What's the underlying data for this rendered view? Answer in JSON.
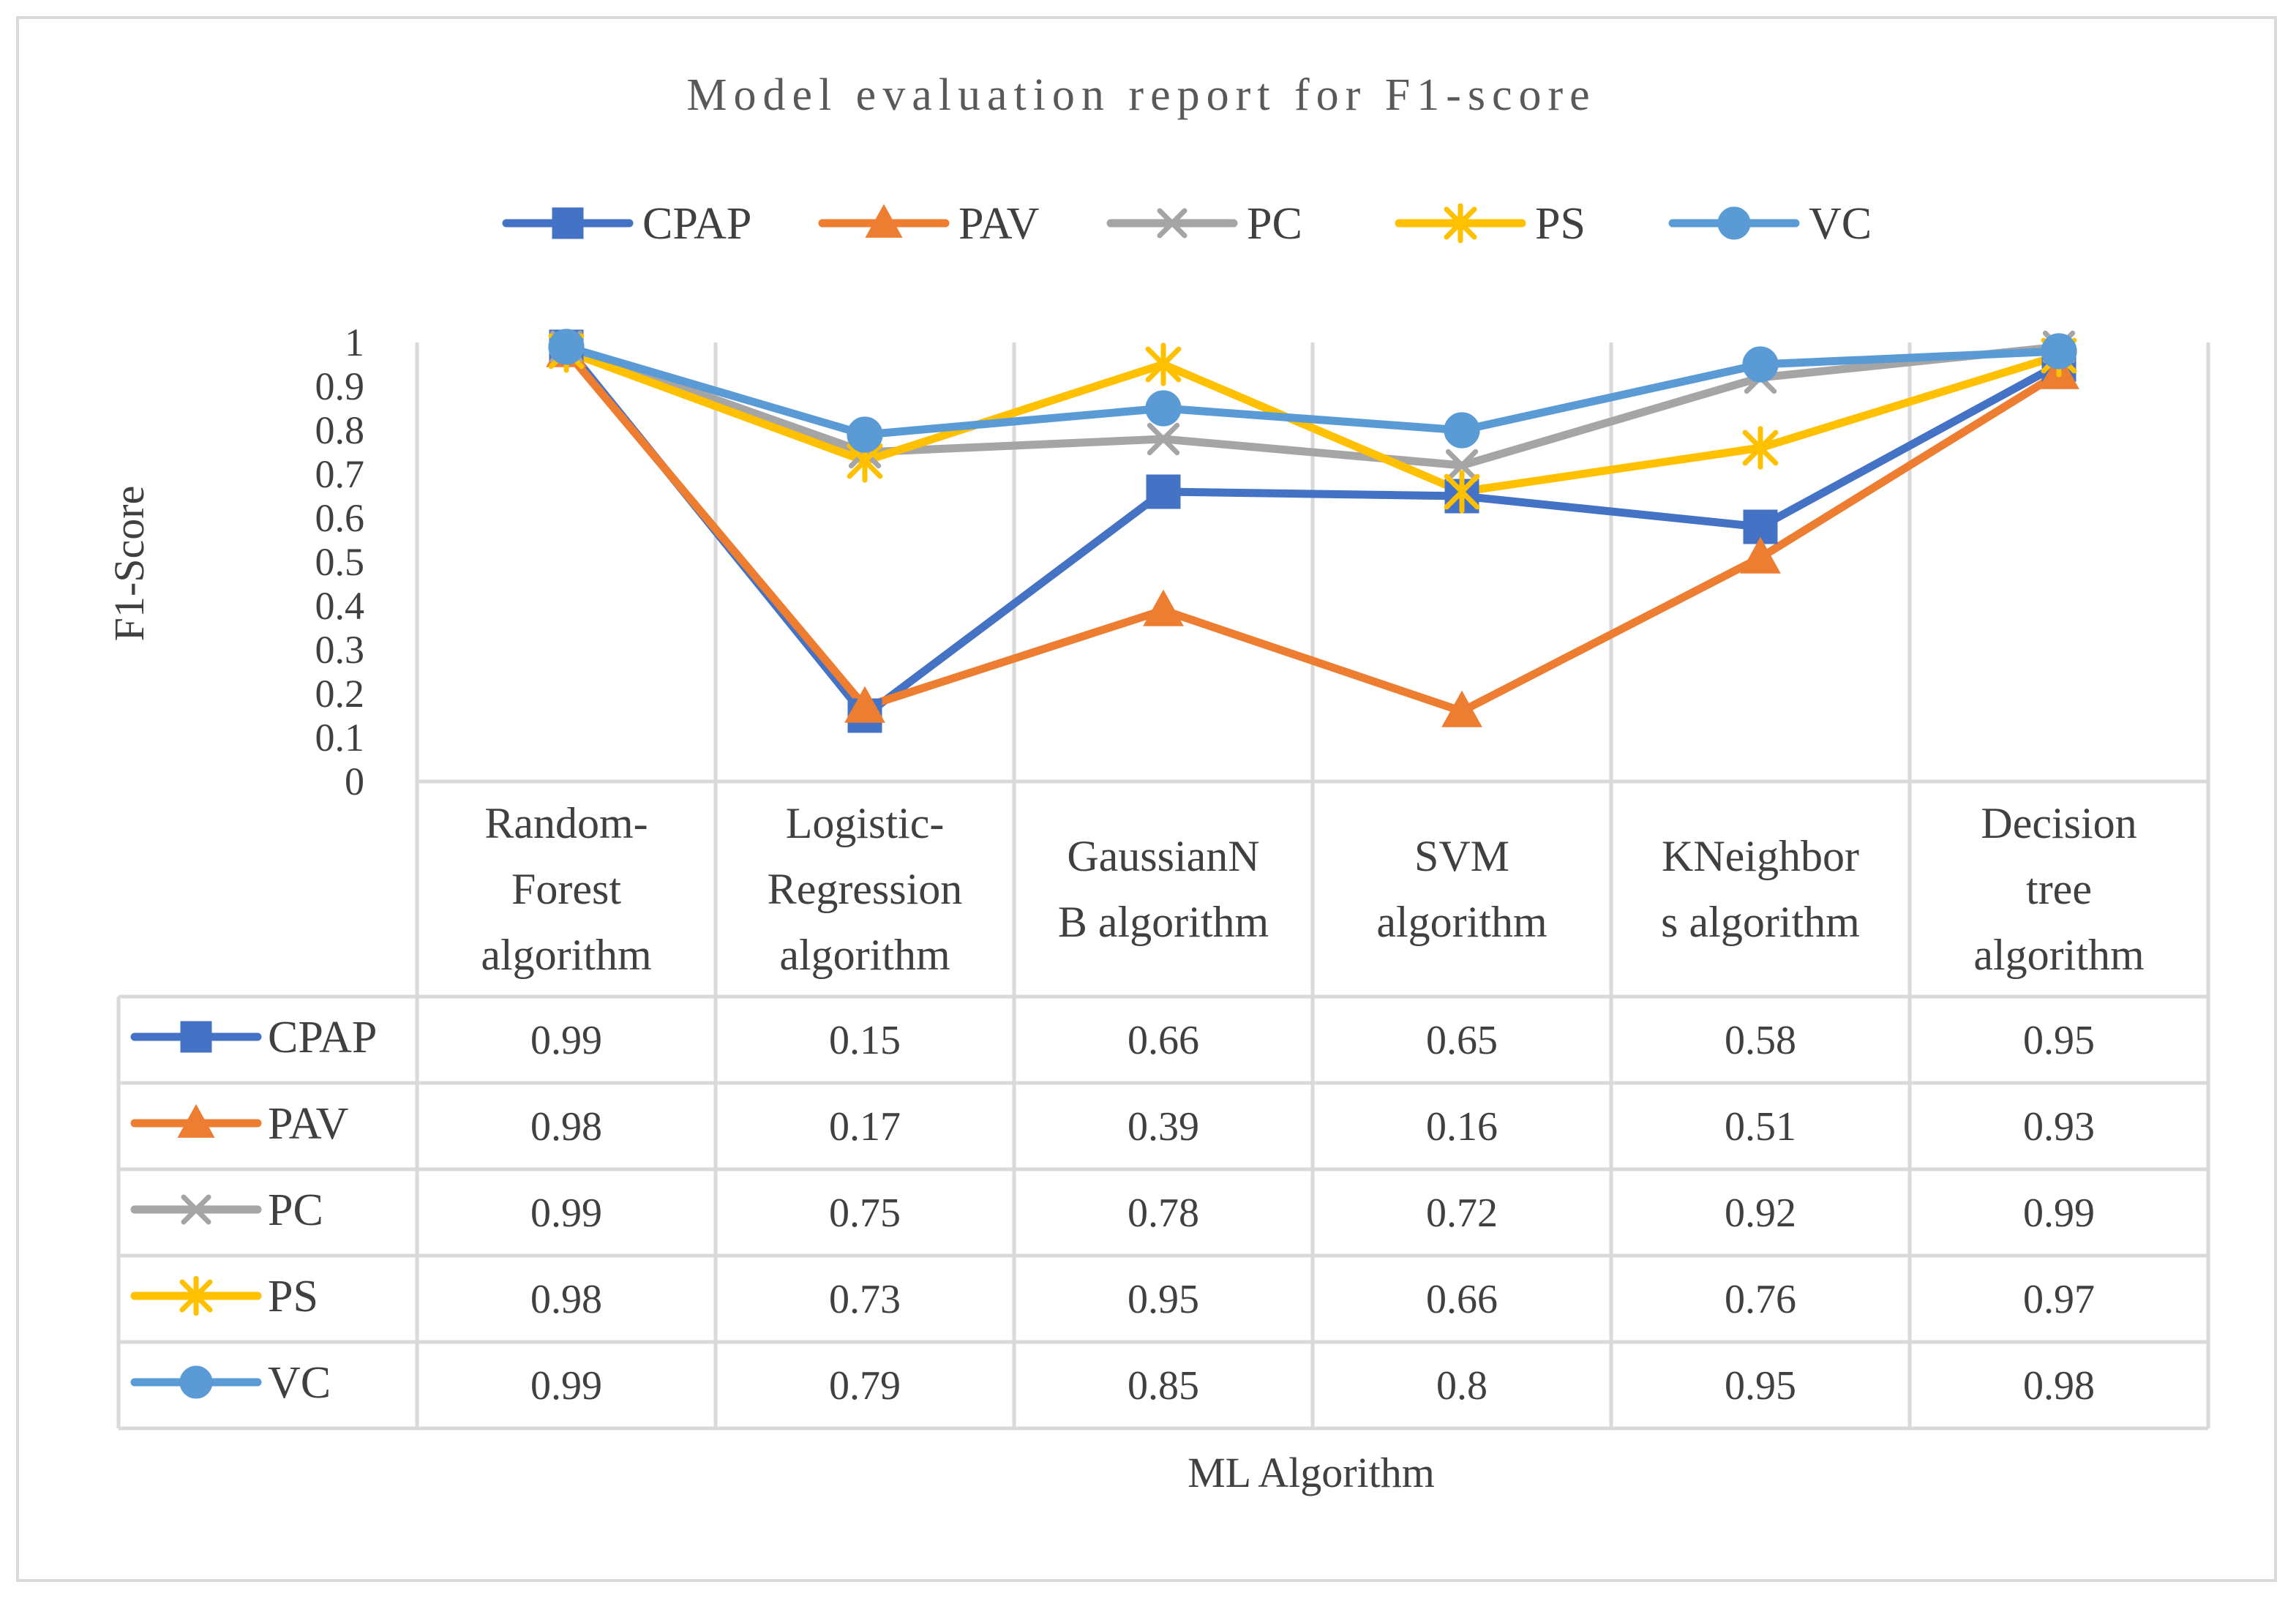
{
  "chart_data": {
    "type": "line",
    "title": "Model evaluation report for F1-score",
    "xlabel": "ML Algorithm",
    "ylabel": "F1-Score",
    "ylim": [
      0,
      1
    ],
    "yticks": [
      "0",
      "0.1",
      "0.2",
      "0.3",
      "0.4",
      "0.5",
      "0.6",
      "0.7",
      "0.8",
      "0.9",
      "1"
    ],
    "grid": true,
    "legend_position": "top",
    "categories": [
      [
        "Random-",
        "Forest",
        "algorithm"
      ],
      [
        "Logistic-",
        "Regression",
        "algorithm"
      ],
      [
        "GaussianN",
        "B algorithm"
      ],
      [
        "SVM",
        "algorithm"
      ],
      [
        "KNeighbor",
        "s algorithm"
      ],
      [
        "Decision",
        "tree",
        "algorithm"
      ]
    ],
    "series": [
      {
        "name": "CPAP",
        "marker": "square",
        "color": "#4472C4",
        "values": [
          0.99,
          0.15,
          0.66,
          0.65,
          0.58,
          0.95
        ],
        "labels": [
          "0.99",
          "0.15",
          "0.66",
          "0.65",
          "0.58",
          "0.95"
        ]
      },
      {
        "name": "PAV",
        "marker": "triangle",
        "color": "#ED7D31",
        "values": [
          0.98,
          0.17,
          0.39,
          0.16,
          0.51,
          0.93
        ],
        "labels": [
          "0.98",
          "0.17",
          "0.39",
          "0.16",
          "0.51",
          "0.93"
        ]
      },
      {
        "name": "PC",
        "marker": "x",
        "color": "#A5A5A5",
        "values": [
          0.99,
          0.75,
          0.78,
          0.72,
          0.92,
          0.99
        ],
        "labels": [
          "0.99",
          "0.75",
          "0.78",
          "0.72",
          "0.92",
          "0.99"
        ]
      },
      {
        "name": "PS",
        "marker": "star",
        "color": "#FFC000",
        "values": [
          0.98,
          0.73,
          0.95,
          0.66,
          0.76,
          0.97
        ],
        "labels": [
          "0.98",
          "0.73",
          "0.95",
          "0.66",
          "0.76",
          "0.97"
        ]
      },
      {
        "name": "VC",
        "marker": "circle",
        "color": "#5B9BD5",
        "values": [
          0.99,
          0.79,
          0.85,
          0.8,
          0.95,
          0.98
        ],
        "labels": [
          "0.99",
          "0.79",
          "0.85",
          "0.8",
          "0.95",
          "0.98"
        ]
      }
    ]
  }
}
